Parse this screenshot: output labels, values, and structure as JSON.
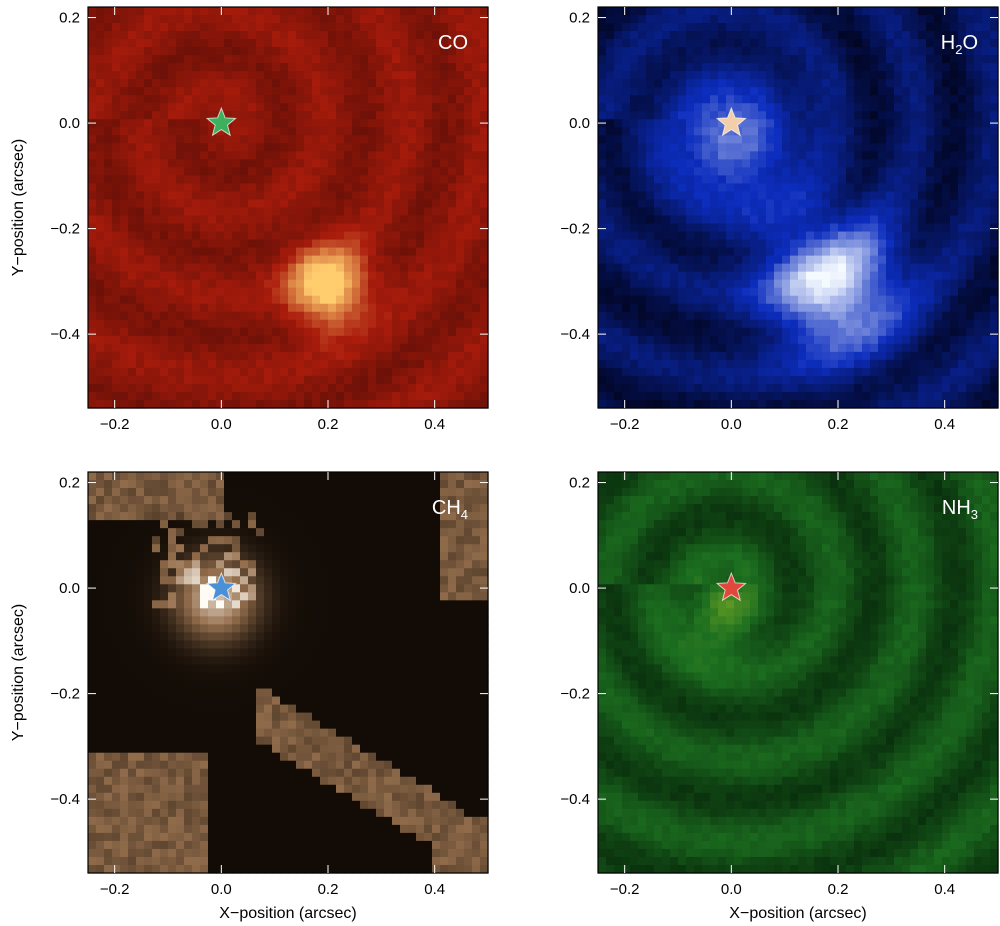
{
  "chart_data": [
    {
      "type": "heatmap",
      "title": "",
      "label": "CO",
      "label_sub": "",
      "colormap": "red",
      "xlabel": "",
      "ylabel": "Y−position (arcsec)",
      "xlim": [
        -0.25,
        0.5
      ],
      "ylim": [
        -0.54,
        0.22
      ],
      "xticks": [
        -0.2,
        0.0,
        0.2,
        0.4
      ],
      "yticks": [
        0.2,
        0.0,
        -0.2,
        -0.4
      ],
      "xtick_labels": [
        "−0.2",
        "0.0",
        "0.2",
        "0.4"
      ],
      "ytick_labels": [
        "0.2",
        "0.0",
        "−0.2",
        "−0.4"
      ],
      "star": {
        "x": 0.0,
        "y": 0.0,
        "color": "#3cb05c"
      },
      "bright_spots": [
        {
          "x": 0.2,
          "y": -0.31,
          "intensity": 1.0
        }
      ]
    },
    {
      "type": "heatmap",
      "title": "",
      "label": "H",
      "label_sub": "2",
      "label_tail": "O",
      "colormap": "blue",
      "xlabel": "",
      "ylabel": "",
      "xlim": [
        -0.25,
        0.5
      ],
      "ylim": [
        -0.54,
        0.22
      ],
      "xticks": [
        -0.2,
        0.0,
        0.2,
        0.4
      ],
      "yticks": [
        0.2,
        0.0,
        -0.2,
        -0.4
      ],
      "xtick_labels": [
        "−0.2",
        "0.0",
        "0.2",
        "0.4"
      ],
      "ytick_labels": [
        "0.2",
        "0.0",
        "−0.2",
        "−0.4"
      ],
      "star": {
        "x": 0.0,
        "y": 0.0,
        "color": "#f2cfa8"
      },
      "bright_spots": [
        {
          "x": 0.0,
          "y": -0.03,
          "intensity": 0.75
        },
        {
          "x": 0.19,
          "y": -0.31,
          "intensity": 1.0
        }
      ]
    },
    {
      "type": "heatmap",
      "title": "",
      "label": "CH",
      "label_sub": "4",
      "colormap": "tan",
      "xlabel": "X−position (arcsec)",
      "ylabel": "Y−position (arcsec)",
      "xlim": [
        -0.25,
        0.5
      ],
      "ylim": [
        -0.54,
        0.22
      ],
      "xticks": [
        -0.2,
        0.0,
        0.2,
        0.4
      ],
      "yticks": [
        0.2,
        0.0,
        -0.2,
        -0.4
      ],
      "xtick_labels": [
        "−0.2",
        "0.0",
        "0.2",
        "0.4"
      ],
      "ytick_labels": [
        "0.2",
        "0.0",
        "−0.2",
        "−0.4"
      ],
      "star": {
        "x": 0.0,
        "y": 0.0,
        "color": "#4a90d9"
      },
      "bright_spots": [
        {
          "x": -0.01,
          "y": -0.02,
          "intensity": 1.0
        }
      ]
    },
    {
      "type": "heatmap",
      "title": "",
      "label": "NH",
      "label_sub": "3",
      "colormap": "green",
      "xlabel": "X−position (arcsec)",
      "ylabel": "",
      "xlim": [
        -0.25,
        0.5
      ],
      "ylim": [
        -0.54,
        0.22
      ],
      "xticks": [
        -0.2,
        0.0,
        0.2,
        0.4
      ],
      "yticks": [
        0.2,
        0.0,
        -0.2,
        -0.4
      ],
      "xtick_labels": [
        "−0.2",
        "0.0",
        "0.2",
        "0.4"
      ],
      "ytick_labels": [
        "0.2",
        "0.0",
        "−0.2",
        "−0.4"
      ],
      "star": {
        "x": 0.0,
        "y": 0.0,
        "color": "#e0473d"
      },
      "bright_spots": [
        {
          "x": -0.02,
          "y": -0.06,
          "intensity": 0.5
        }
      ]
    }
  ]
}
